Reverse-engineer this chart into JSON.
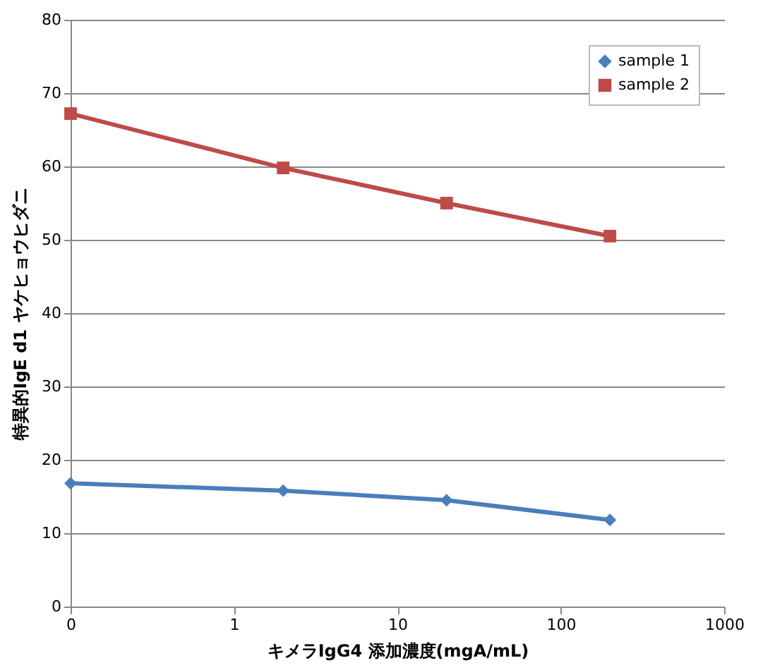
{
  "chart_data": {
    "type": "line",
    "xlabel": "キメラIgG4 添加濃度(mgA/mL)",
    "ylabel": "特異的IgE d1 ヤケヒョウヒダニ",
    "log": "x",
    "xlim": [
      0.1,
      1000
    ],
    "xticks": [
      {
        "value": 0.1,
        "label": "0"
      },
      1,
      10,
      100,
      1000
    ],
    "ylim": [
      0,
      80
    ],
    "yticks": [
      0,
      10,
      20,
      30,
      40,
      50,
      60,
      70,
      80
    ],
    "grid": "y",
    "legend": "top right",
    "line_style": "solid",
    "x": [
      0.1,
      2,
      20,
      200
    ],
    "series": [
      {
        "name": "sample 1",
        "color": "#4a7ebb",
        "marker": "diamond",
        "values": [
          16.8,
          15.8,
          14.5,
          11.8
        ]
      },
      {
        "name": "sample 2",
        "color": "#be4b48",
        "marker": "square",
        "values": [
          67.2,
          59.8,
          55.0,
          50.5
        ]
      }
    ]
  }
}
